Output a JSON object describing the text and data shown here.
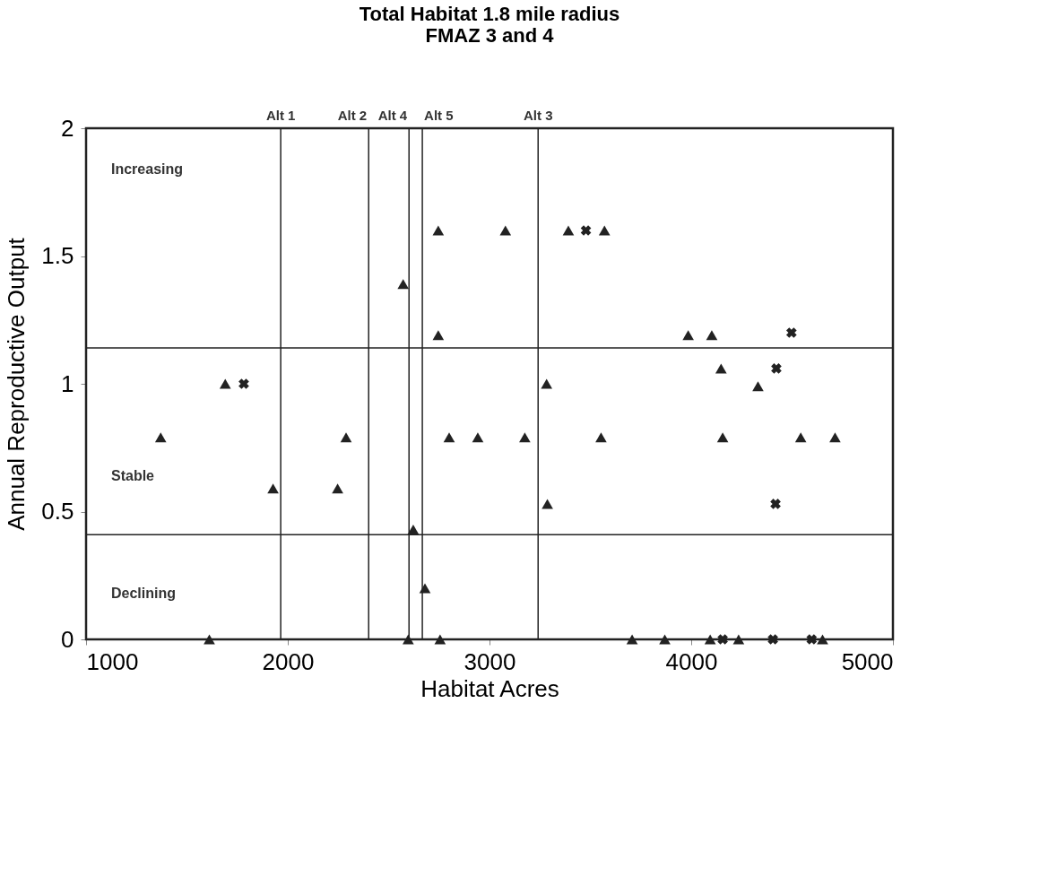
{
  "chart_data": {
    "type": "scatter",
    "title": "Total Habitat 1.8 mile radius",
    "subtitle": "FMAZ 3 and 4",
    "xlabel": "Habitat Acres",
    "ylabel": "Annual Reproductive Output",
    "series": [
      {
        "color": "#222222",
        "marker": "triangle",
        "x": [
          1370,
          1690,
          1927,
          1611,
          2289,
          2247,
          2572,
          2622,
          2597,
          2746,
          2746,
          2680,
          2755,
          2800,
          2942,
          3079,
          3175,
          3283,
          3287,
          3391,
          3570,
          3553,
          3707,
          3869,
          3985,
          4102,
          4148,
          4156,
          4094,
          4235,
          4331,
          4543,
          4713,
          4651
        ],
        "values": [
          0.79,
          1.0,
          0.59,
          0,
          0.79,
          0.59,
          1.39,
          0.43,
          0,
          1.6,
          1.19,
          0.2,
          0,
          0.79,
          0.79,
          1.6,
          0.79,
          1.0,
          0.53,
          1.6,
          1.6,
          0.79,
          0,
          0,
          1.19,
          1.19,
          1.06,
          0.79,
          0,
          0,
          0.99,
          0.79,
          0.79,
          0
        ]
      },
      {
        "color": "#222222",
        "marker": "cross",
        "x": [
          1782,
          3478,
          4497,
          4422,
          4418,
          4156,
          4405,
          4597
        ],
        "values": [
          1.0,
          1.6,
          1.2,
          1.06,
          0.53,
          0,
          0,
          0
        ]
      }
    ],
    "xlim": [
      1000,
      5000
    ],
    "xticks": [
      1000,
      2000,
      3000,
      4000,
      5000
    ],
    "ylim": [
      0,
      2
    ],
    "yticks": [
      0,
      0.5,
      1,
      1.5,
      2
    ],
    "ref_lines": [
      {
        "axis": "x",
        "value": 1965,
        "label": "Alt 1"
      },
      {
        "axis": "x",
        "value": 2401,
        "label": "Alt 2"
      },
      {
        "axis": "x",
        "value": 2601,
        "label": "Alt 4"
      },
      {
        "axis": "x",
        "value": 2667,
        "label": "Alt 5"
      },
      {
        "axis": "x",
        "value": 3241,
        "label": "Alt 3"
      },
      {
        "axis": "y",
        "value": 1.14,
        "label": null
      },
      {
        "axis": "y",
        "value": 0.41,
        "label": null
      }
    ],
    "annotations": [
      "Increasing",
      "Stable",
      "Declining"
    ]
  }
}
